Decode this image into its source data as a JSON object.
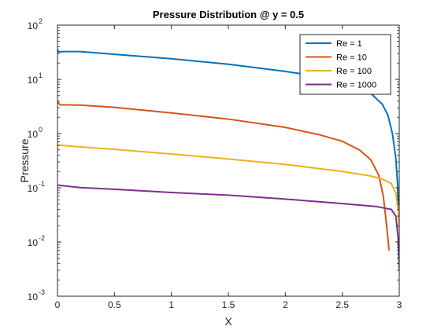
{
  "chart_data": {
    "type": "line",
    "title": "Pressure Distribution @ y = 0.5",
    "xlabel": "X",
    "ylabel": "Pressure",
    "xlim": [
      0,
      3
    ],
    "ylim": [
      0.001,
      100
    ],
    "yscale": "log",
    "grid": false,
    "legend_position": "top-right",
    "x_ticks": [
      0,
      0.5,
      1,
      1.5,
      2,
      2.5,
      3
    ],
    "x_tick_labels": [
      "0",
      "0.5",
      "1",
      "1.5",
      "2",
      "2.5",
      "3"
    ],
    "y_ticks": [
      0.001,
      0.01,
      0.1,
      1,
      10,
      100
    ],
    "y_tick_labels": [
      {
        "base": "10",
        "exp": "-3"
      },
      {
        "base": "10",
        "exp": "-2"
      },
      {
        "base": "10",
        "exp": "-1"
      },
      {
        "base": "10",
        "exp": "0"
      },
      {
        "base": "10",
        "exp": "1"
      },
      {
        "base": "10",
        "exp": "2"
      }
    ],
    "series": [
      {
        "name": "Re = 1",
        "color": "#0072bd",
        "points": [
          [
            0,
            36
          ],
          [
            0.01,
            32
          ],
          [
            0.05,
            32.5
          ],
          [
            0.2,
            32.5
          ],
          [
            0.5,
            29
          ],
          [
            1.0,
            24
          ],
          [
            1.5,
            19
          ],
          [
            2.0,
            14
          ],
          [
            2.4,
            10.5
          ],
          [
            2.6,
            8
          ],
          [
            2.75,
            5.5
          ],
          [
            2.85,
            3.5
          ],
          [
            2.9,
            2.2
          ],
          [
            2.94,
            1.0
          ],
          [
            2.97,
            0.35
          ],
          [
            2.985,
            0.12
          ],
          [
            2.995,
            0.03
          ]
        ]
      },
      {
        "name": "Re = 10",
        "color": "#d95319",
        "points": [
          [
            0,
            4.0
          ],
          [
            0.02,
            3.4
          ],
          [
            0.2,
            3.35
          ],
          [
            0.5,
            3.05
          ],
          [
            1.0,
            2.4
          ],
          [
            1.5,
            1.85
          ],
          [
            2.0,
            1.3
          ],
          [
            2.3,
            0.95
          ],
          [
            2.5,
            0.72
          ],
          [
            2.65,
            0.5
          ],
          [
            2.75,
            0.33
          ],
          [
            2.82,
            0.17
          ],
          [
            2.86,
            0.07
          ],
          [
            2.88,
            0.03
          ],
          [
            2.9,
            0.012
          ],
          [
            2.91,
            0.007
          ]
        ]
      },
      {
        "name": "Re = 100",
        "color": "#edb120",
        "points": [
          [
            0,
            0.62
          ],
          [
            0.1,
            0.59
          ],
          [
            0.5,
            0.51
          ],
          [
            1.0,
            0.42
          ],
          [
            1.5,
            0.34
          ],
          [
            2.0,
            0.27
          ],
          [
            2.5,
            0.2
          ],
          [
            2.75,
            0.165
          ],
          [
            2.85,
            0.145
          ],
          [
            2.93,
            0.12
          ],
          [
            2.97,
            0.08
          ],
          [
            2.99,
            0.04
          ],
          [
            3.0,
            0.018
          ]
        ]
      },
      {
        "name": "Re = 1000",
        "color": "#7e2f8e",
        "points": [
          [
            0,
            0.112
          ],
          [
            0.2,
            0.101
          ],
          [
            0.5,
            0.094
          ],
          [
            1.0,
            0.082
          ],
          [
            1.5,
            0.073
          ],
          [
            2.0,
            0.062
          ],
          [
            2.5,
            0.051
          ],
          [
            2.8,
            0.045
          ],
          [
            2.93,
            0.04
          ],
          [
            2.97,
            0.03
          ],
          [
            2.99,
            0.012
          ],
          [
            3.0,
            0.003
          ]
        ]
      }
    ]
  }
}
